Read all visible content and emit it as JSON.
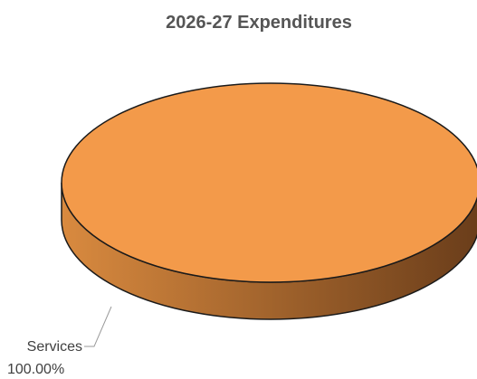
{
  "chart_data": {
    "type": "pie",
    "title": "2026-27 Expenditures",
    "slices": [
      {
        "label": "Services",
        "value": 100.0,
        "percent_label": "100.00%",
        "color": "#f39a4a",
        "side_color_light": "#d98a3f",
        "side_color_dark": "#6a3d1a"
      }
    ],
    "style": "3d",
    "legend": "none",
    "outline_color": "#1a1a1a",
    "leader_line_color": "#9a9a9a"
  }
}
